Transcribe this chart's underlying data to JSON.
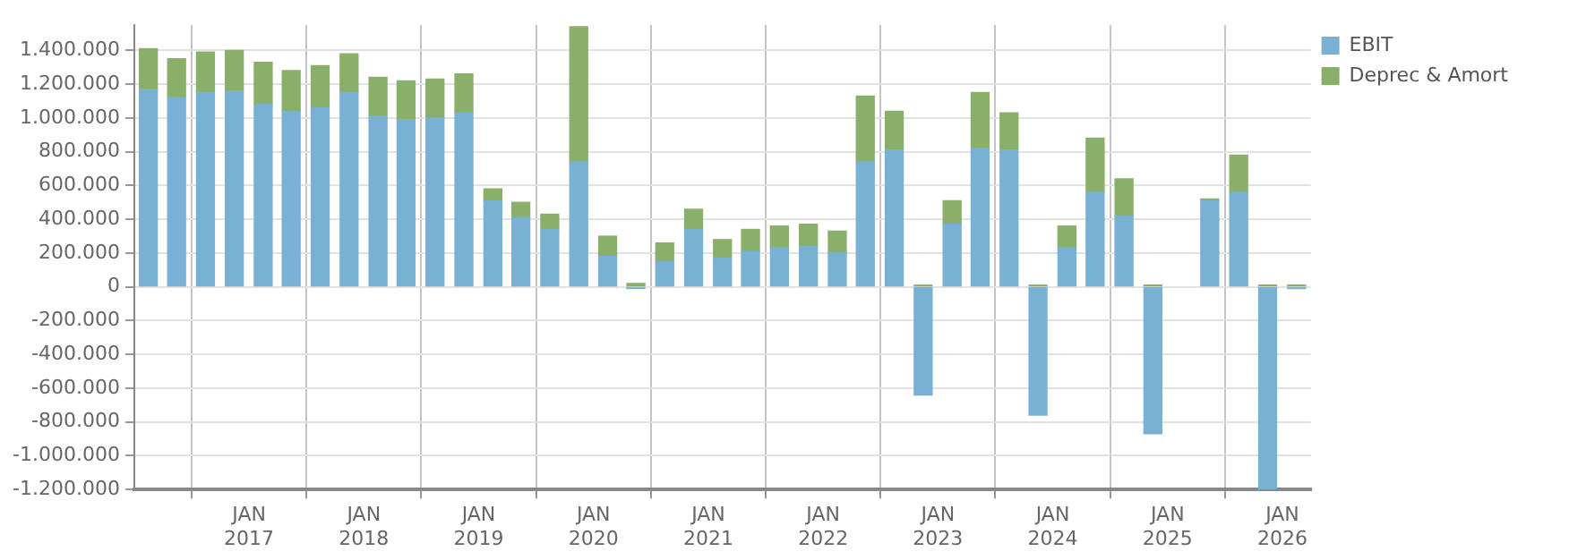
{
  "chart_data": {
    "type": "bar",
    "stacked": true,
    "x": [
      "2016-02-15",
      "2016-05-15",
      "2016-08-15",
      "2016-11-15",
      "2017-02-15",
      "2017-05-15",
      "2017-08-15",
      "2017-11-15",
      "2018-02-15",
      "2018-05-15",
      "2018-08-15",
      "2018-11-15",
      "2019-02-15",
      "2019-05-15",
      "2019-08-15",
      "2019-11-15",
      "2020-02-15",
      "2020-05-15",
      "2020-08-15",
      "2020-11-15",
      "2021-02-15",
      "2021-05-15",
      "2021-08-15",
      "2021-11-15",
      "2022-02-15",
      "2022-05-15",
      "2022-08-15",
      "2022-11-15",
      "2023-02-15",
      "2023-05-15",
      "2023-08-15",
      "2023-11-15",
      "2024-02-15",
      "2024-05-15",
      "2024-08-15",
      "2024-11-15",
      "2025-02-15",
      "2025-05-15",
      "2025-08-15",
      "2025-11-15",
      "2026-02-15"
    ],
    "series": [
      {
        "name": "EBIT",
        "color": "#79b1d4",
        "values": [
          1170000,
          1120000,
          1150000,
          1160000,
          1080000,
          1040000,
          1060000,
          1150000,
          1010000,
          990000,
          1000000,
          1030000,
          510000,
          410000,
          340000,
          740000,
          180000,
          -10000,
          150000,
          340000,
          170000,
          210000,
          230000,
          240000,
          200000,
          740000,
          810000,
          -640000,
          370000,
          820000,
          810000,
          -760000,
          230000,
          560000,
          420000,
          -870000,
          null,
          510000,
          560000,
          -1200000,
          -10000
        ]
      },
      {
        "name": "Deprec & Amort",
        "color": "#8aaf69",
        "values": [
          240000,
          230000,
          240000,
          240000,
          250000,
          240000,
          250000,
          230000,
          230000,
          230000,
          230000,
          230000,
          70000,
          90000,
          90000,
          800000,
          120000,
          20000,
          110000,
          120000,
          110000,
          130000,
          130000,
          130000,
          130000,
          390000,
          230000,
          10000,
          140000,
          330000,
          220000,
          10000,
          130000,
          320000,
          220000,
          10000,
          null,
          10000,
          220000,
          10000,
          10000
        ]
      }
    ],
    "xlim": [
      "2016-01-01",
      "2026-04-01"
    ],
    "xticks": [
      {
        "value": "2017-01-01",
        "label": "JAN 2017"
      },
      {
        "value": "2018-01-01",
        "label": "JAN 2018"
      },
      {
        "value": "2019-01-01",
        "label": "JAN 2019"
      },
      {
        "value": "2020-01-01",
        "label": "JAN 2020"
      },
      {
        "value": "2021-01-01",
        "label": "JAN 2021"
      },
      {
        "value": "2022-01-01",
        "label": "JAN 2022"
      },
      {
        "value": "2023-01-01",
        "label": "JAN 2023"
      },
      {
        "value": "2024-01-01",
        "label": "JAN 2024"
      },
      {
        "value": "2025-01-01",
        "label": "JAN 2025"
      },
      {
        "value": "2026-01-01",
        "label": "JAN 2026"
      }
    ],
    "ylim": [
      -1200000,
      1550000
    ],
    "yticks": [
      {
        "value": -1200000,
        "label": "-1.200.000"
      },
      {
        "value": -1000000,
        "label": "-1.000.000"
      },
      {
        "value": -800000,
        "label": "-800.000"
      },
      {
        "value": -600000,
        "label": "-600.000"
      },
      {
        "value": -400000,
        "label": "-400.000"
      },
      {
        "value": -200000,
        "label": "-200.000"
      },
      {
        "value": 0,
        "label": "0"
      },
      {
        "value": 200000,
        "label": "200.000"
      },
      {
        "value": 400000,
        "label": "400.000"
      },
      {
        "value": 600000,
        "label": "600.000"
      },
      {
        "value": 800000,
        "label": "800.000"
      },
      {
        "value": 1000000,
        "label": "1.000.000"
      },
      {
        "value": 1200000,
        "label": "1.200.000"
      },
      {
        "value": 1400000,
        "label": "1.400.000"
      }
    ],
    "grid": true,
    "legend": "top right"
  }
}
